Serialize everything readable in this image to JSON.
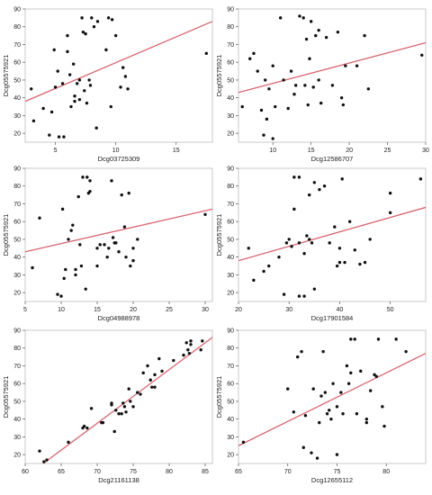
{
  "colors": {
    "fit_line": "#d9636e",
    "point": "#111111",
    "frame": "#bdbdbd"
  },
  "chart_data": [
    {
      "type": "scatter",
      "xlabel": "Dcg03725309",
      "ylabel": "Dcg05575921",
      "xlim": [
        2.5,
        18
      ],
      "ylim": [
        15,
        90
      ],
      "xticks": [
        5,
        10,
        15
      ],
      "yticks": [
        20,
        30,
        40,
        50,
        60,
        70,
        80,
        90
      ],
      "fit_line": {
        "x": [
          2.5,
          18
        ],
        "y": [
          38,
          83
        ]
      },
      "points": [
        [
          3,
          45
        ],
        [
          3.2,
          27
        ],
        [
          4,
          34
        ],
        [
          4.5,
          19
        ],
        [
          4.7,
          32
        ],
        [
          4.9,
          67
        ],
        [
          5,
          46
        ],
        [
          5.2,
          55
        ],
        [
          5.3,
          18
        ],
        [
          5.6,
          48
        ],
        [
          5.7,
          18
        ],
        [
          6,
          75
        ],
        [
          6,
          66
        ],
        [
          6.2,
          53
        ],
        [
          6.3,
          35
        ],
        [
          6.5,
          59
        ],
        [
          6.6,
          41
        ],
        [
          6.6,
          38
        ],
        [
          6.8,
          48
        ],
        [
          7,
          39
        ],
        [
          7,
          50
        ],
        [
          7.2,
          85
        ],
        [
          7.3,
          77
        ],
        [
          7.4,
          44
        ],
        [
          7.5,
          76
        ],
        [
          7.6,
          37
        ],
        [
          7.8,
          50
        ],
        [
          7.9,
          47
        ],
        [
          8,
          85
        ],
        [
          8.2,
          80
        ],
        [
          8.4,
          23
        ],
        [
          8.5,
          83
        ],
        [
          9.2,
          67
        ],
        [
          9.4,
          85
        ],
        [
          9.6,
          35
        ],
        [
          9.7,
          84
        ],
        [
          10,
          75
        ],
        [
          10.4,
          46
        ],
        [
          10.6,
          57
        ],
        [
          10.8,
          52
        ],
        [
          11,
          45
        ],
        [
          17.5,
          65
        ]
      ]
    },
    {
      "type": "scatter",
      "xlabel": "Dcg12586707",
      "ylabel": "Dcg05575921",
      "xlim": [
        5.5,
        30
      ],
      "ylim": [
        15,
        90
      ],
      "xticks": [
        10,
        15,
        20,
        25,
        30
      ],
      "yticks": [
        20,
        30,
        40,
        50,
        60,
        70,
        80,
        90
      ],
      "fit_line": {
        "x": [
          5.5,
          30
        ],
        "y": [
          43,
          71
        ]
      },
      "points": [
        [
          6,
          35
        ],
        [
          7,
          62
        ],
        [
          7.5,
          65
        ],
        [
          8,
          55
        ],
        [
          8.5,
          33
        ],
        [
          8.8,
          19
        ],
        [
          9,
          50
        ],
        [
          9.2,
          28
        ],
        [
          9.5,
          45
        ],
        [
          10,
          58
        ],
        [
          10,
          17
        ],
        [
          10.3,
          35
        ],
        [
          11,
          85
        ],
        [
          11.4,
          50
        ],
        [
          12,
          34
        ],
        [
          12.4,
          55
        ],
        [
          12.8,
          42
        ],
        [
          13,
          47
        ],
        [
          13.5,
          86
        ],
        [
          14,
          85
        ],
        [
          14.2,
          47
        ],
        [
          14.4,
          73
        ],
        [
          14.6,
          36
        ],
        [
          14.8,
          62
        ],
        [
          15,
          83
        ],
        [
          15.3,
          46
        ],
        [
          15.6,
          75
        ],
        [
          16,
          50
        ],
        [
          16,
          78
        ],
        [
          16.3,
          37
        ],
        [
          17,
          74
        ],
        [
          17.8,
          47
        ],
        [
          18.5,
          77
        ],
        [
          19,
          40
        ],
        [
          19.2,
          36
        ],
        [
          19.5,
          58
        ],
        [
          21,
          58
        ],
        [
          22,
          75
        ],
        [
          22.5,
          45
        ],
        [
          29.5,
          64
        ]
      ]
    },
    {
      "type": "scatter",
      "xlabel": "Dcg04988978",
      "ylabel": "Dcg05575921",
      "xlim": [
        5,
        31
      ],
      "ylim": [
        15,
        90
      ],
      "xticks": [
        5,
        10,
        15,
        20,
        25,
        30
      ],
      "yticks": [
        20,
        30,
        40,
        50,
        60,
        70,
        80,
        90
      ],
      "fit_line": {
        "x": [
          5,
          31
        ],
        "y": [
          43,
          67
        ]
      },
      "points": [
        [
          6,
          34
        ],
        [
          7,
          62
        ],
        [
          9.5,
          19
        ],
        [
          10,
          18
        ],
        [
          10.2,
          67
        ],
        [
          10.4,
          28
        ],
        [
          10.6,
          33
        ],
        [
          11,
          50
        ],
        [
          11.4,
          55
        ],
        [
          11.6,
          58
        ],
        [
          12,
          30
        ],
        [
          12,
          33
        ],
        [
          12.4,
          74
        ],
        [
          12.6,
          47
        ],
        [
          12.8,
          35
        ],
        [
          13,
          85
        ],
        [
          13.4,
          22
        ],
        [
          13.6,
          85
        ],
        [
          13.8,
          76
        ],
        [
          14,
          77
        ],
        [
          14,
          83
        ],
        [
          15,
          45
        ],
        [
          15,
          35
        ],
        [
          15.4,
          47
        ],
        [
          16,
          47
        ],
        [
          16.4,
          40
        ],
        [
          16.6,
          45
        ],
        [
          17,
          83
        ],
        [
          17.2,
          51
        ],
        [
          17.4,
          48
        ],
        [
          17.6,
          48
        ],
        [
          18,
          43
        ],
        [
          18.4,
          75
        ],
        [
          18.8,
          57
        ],
        [
          19,
          40
        ],
        [
          19.4,
          76
        ],
        [
          19.6,
          35
        ],
        [
          20,
          38
        ],
        [
          20,
          45
        ],
        [
          20.6,
          50
        ],
        [
          30,
          64
        ]
      ]
    },
    {
      "type": "scatter",
      "xlabel": "Dcg17901584",
      "ylabel": "Dcg05575921",
      "xlim": [
        20,
        57
      ],
      "ylim": [
        15,
        90
      ],
      "xticks": [
        20,
        30,
        40,
        50
      ],
      "yticks": [
        20,
        30,
        40,
        50,
        60,
        70,
        80,
        90
      ],
      "fit_line": {
        "x": [
          20,
          57
        ],
        "y": [
          38,
          68
        ]
      },
      "points": [
        [
          22,
          45
        ],
        [
          23,
          27
        ],
        [
          25,
          32
        ],
        [
          26,
          35
        ],
        [
          28,
          40
        ],
        [
          29,
          19
        ],
        [
          29.5,
          48
        ],
        [
          30,
          50
        ],
        [
          30.5,
          46
        ],
        [
          31,
          85
        ],
        [
          31,
          67
        ],
        [
          32,
          85
        ],
        [
          32,
          48
        ],
        [
          32,
          18
        ],
        [
          33,
          18
        ],
        [
          33,
          42
        ],
        [
          33.5,
          52
        ],
        [
          34,
          75
        ],
        [
          34,
          50
        ],
        [
          34.5,
          48
        ],
        [
          35,
          82
        ],
        [
          35,
          22
        ],
        [
          36,
          78
        ],
        [
          37,
          80
        ],
        [
          38,
          48
        ],
        [
          39,
          57
        ],
        [
          39.5,
          35
        ],
        [
          40,
          37
        ],
        [
          40,
          45
        ],
        [
          40.5,
          84
        ],
        [
          41,
          37
        ],
        [
          42,
          60
        ],
        [
          43,
          44
        ],
        [
          44,
          36
        ],
        [
          45,
          37
        ],
        [
          46,
          50
        ],
        [
          50,
          65
        ],
        [
          50,
          76
        ],
        [
          56,
          84
        ]
      ]
    },
    {
      "type": "scatter",
      "xlabel": "Dcg21161138",
      "ylabel": "Dcg05575921",
      "xlim": [
        60,
        86
      ],
      "ylim": [
        15,
        90
      ],
      "xticks": [
        60,
        65,
        70,
        75,
        80,
        85
      ],
      "yticks": [
        20,
        30,
        40,
        50,
        60,
        70,
        80,
        90
      ],
      "fit_line": {
        "x": [
          62.5,
          86
        ],
        "y": [
          15,
          86
        ]
      },
      "points": [
        [
          62,
          22
        ],
        [
          62.6,
          16
        ],
        [
          63,
          17
        ],
        [
          66,
          27
        ],
        [
          68,
          35
        ],
        [
          68.2,
          36
        ],
        [
          68.6,
          35
        ],
        [
          69.2,
          46
        ],
        [
          70.6,
          38
        ],
        [
          70.8,
          38
        ],
        [
          72,
          49
        ],
        [
          72,
          48
        ],
        [
          72.4,
          33
        ],
        [
          72.6,
          45
        ],
        [
          73,
          43
        ],
        [
          73.4,
          43
        ],
        [
          73.6,
          49
        ],
        [
          73.8,
          47
        ],
        [
          74,
          44
        ],
        [
          74.4,
          57
        ],
        [
          74.6,
          50
        ],
        [
          75,
          47
        ],
        [
          75.6,
          55
        ],
        [
          76,
          54
        ],
        [
          76.4,
          66
        ],
        [
          77,
          70
        ],
        [
          77.4,
          62
        ],
        [
          77.6,
          58
        ],
        [
          78,
          58
        ],
        [
          78,
          65
        ],
        [
          78.6,
          74
        ],
        [
          79,
          67
        ],
        [
          80.6,
          73
        ],
        [
          82,
          76
        ],
        [
          82.4,
          83
        ],
        [
          82.6,
          79
        ],
        [
          82.8,
          77
        ],
        [
          83,
          82
        ],
        [
          83,
          84
        ],
        [
          84.4,
          79
        ],
        [
          84.6,
          84
        ]
      ]
    },
    {
      "type": "scatter",
      "xlabel": "Dcg12655112",
      "ylabel": "Dcg05575921",
      "xlim": [
        65,
        84
      ],
      "ylim": [
        15,
        90
      ],
      "xticks": [
        65,
        70,
        75,
        80
      ],
      "yticks": [
        20,
        30,
        40,
        50,
        60,
        70,
        80,
        90
      ],
      "fit_line": {
        "x": [
          65,
          84
        ],
        "y": [
          25,
          77
        ]
      },
      "points": [
        [
          65.5,
          27
        ],
        [
          70,
          57
        ],
        [
          70.6,
          44
        ],
        [
          71,
          75
        ],
        [
          71.4,
          78
        ],
        [
          71.6,
          24
        ],
        [
          71.8,
          42
        ],
        [
          72.4,
          21
        ],
        [
          72.6,
          57
        ],
        [
          73,
          18
        ],
        [
          73.2,
          38
        ],
        [
          73.4,
          53
        ],
        [
          73.6,
          78
        ],
        [
          73.8,
          55
        ],
        [
          74,
          43
        ],
        [
          74.2,
          45
        ],
        [
          74.4,
          40
        ],
        [
          74.6,
          60
        ],
        [
          75,
          47
        ],
        [
          75,
          20
        ],
        [
          75.4,
          55
        ],
        [
          75.6,
          43
        ],
        [
          76,
          70
        ],
        [
          76.2,
          60
        ],
        [
          76.4,
          66
        ],
        [
          76.4,
          85
        ],
        [
          76.8,
          85
        ],
        [
          77,
          43
        ],
        [
          77.4,
          67
        ],
        [
          78,
          38
        ],
        [
          78,
          40
        ],
        [
          78.4,
          56
        ],
        [
          78.8,
          65
        ],
        [
          79,
          64
        ],
        [
          79.2,
          85
        ],
        [
          79.6,
          47
        ],
        [
          79.8,
          36
        ],
        [
          81,
          85
        ],
        [
          82,
          78
        ]
      ]
    }
  ]
}
